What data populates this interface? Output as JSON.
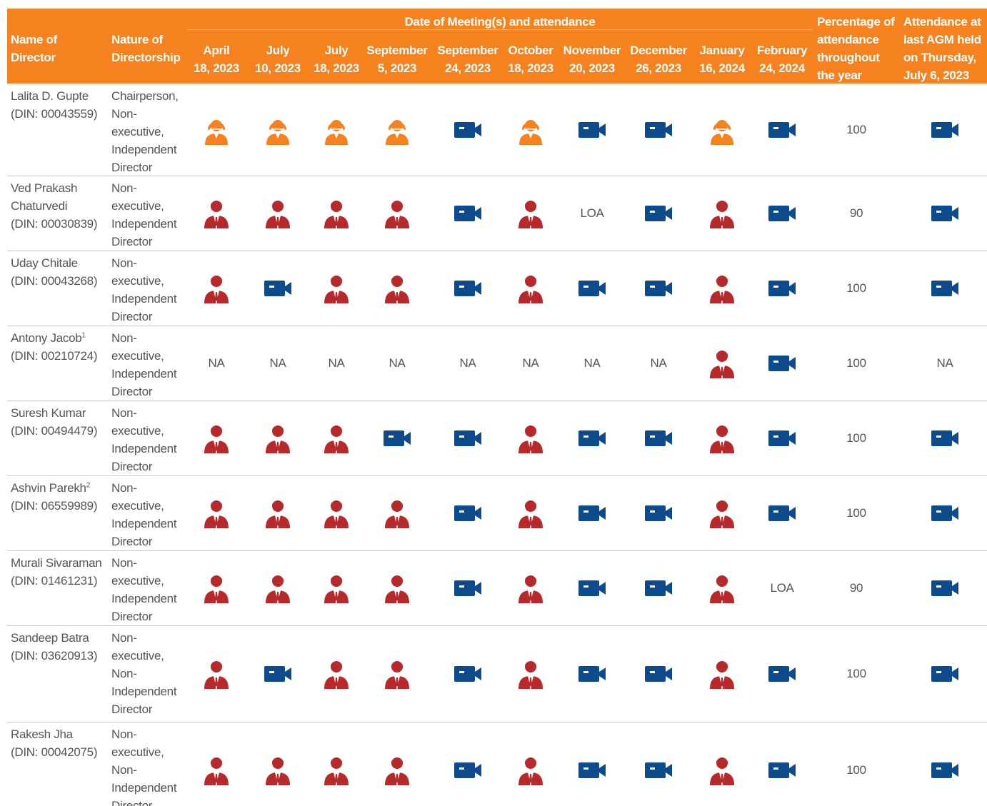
{
  "header": {
    "name": "Name of Director",
    "nature": "Nature of Directorship",
    "group": "Date of Meeting(s) and attendance",
    "meetings": [
      [
        "April",
        "18, 2023"
      ],
      [
        "July",
        "10, 2023"
      ],
      [
        "July",
        "18, 2023"
      ],
      [
        "September",
        "5, 2023"
      ],
      [
        "September",
        "24, 2023"
      ],
      [
        "October",
        "18, 2023"
      ],
      [
        "November",
        "20, 2023"
      ],
      [
        "December",
        "26, 2023"
      ],
      [
        "January",
        "16, 2024"
      ],
      [
        "February",
        "24, 2024"
      ]
    ],
    "percentage": "Percentage of attendance throughout the year",
    "agm": "Attendance at last AGM held on Thursday, July 6, 2023"
  },
  "rows": [
    {
      "name": "Lalita D. Gupte",
      "din": "(DIN: 00043559)",
      "nature": "Chairperson, Non-executive, Independent Director",
      "meetings": [
        "person-f",
        "person-f",
        "person-f",
        "person-f",
        "video",
        "person-f",
        "video",
        "video",
        "person-f",
        "video"
      ],
      "percentage": "100",
      "agm": "video"
    },
    {
      "name": "Ved Prakash Chaturvedi",
      "din": "(DIN: 00030839)",
      "nature": "Non-executive, Independent Director",
      "meetings": [
        "person-m",
        "person-m",
        "person-m",
        "person-m",
        "video",
        "person-m",
        "LOA",
        "video",
        "person-m",
        "video"
      ],
      "percentage": "90",
      "agm": "video"
    },
    {
      "name": "Uday Chitale",
      "din": "(DIN: 00043268)",
      "nature": "Non-executive, Independent Director",
      "meetings": [
        "person-m",
        "video",
        "person-m",
        "person-m",
        "video",
        "person-m",
        "video",
        "video",
        "person-m",
        "video"
      ],
      "percentage": "100",
      "agm": "video"
    },
    {
      "name": "Antony Jacob",
      "sup": "1",
      "din": "(DIN: 00210724)",
      "nature": "Non-executive, Independent Director",
      "meetings": [
        "NA",
        "NA",
        "NA",
        "NA",
        "NA",
        "NA",
        "NA",
        "NA",
        "person-m",
        "video"
      ],
      "percentage": "100",
      "agm": "NA"
    },
    {
      "name": "Suresh Kumar",
      "din": "(DIN: 00494479)",
      "nature": "Non-executive, Independent Director",
      "meetings": [
        "person-m",
        "person-m",
        "person-m",
        "video",
        "video",
        "person-m",
        "video",
        "video",
        "person-m",
        "video"
      ],
      "percentage": "100",
      "agm": "video"
    },
    {
      "name": "Ashvin Parekh",
      "sup": "2",
      "din": "(DIN: 06559989)",
      "nature": "Non-executive, Independent Director",
      "meetings": [
        "person-m",
        "person-m",
        "person-m",
        "person-m",
        "video",
        "person-m",
        "video",
        "video",
        "person-m",
        "video"
      ],
      "percentage": "100",
      "agm": "video"
    },
    {
      "name": "Murali Sivaraman",
      "din": "(DIN: 01461231)",
      "nature": "Non-executive, Independent Director",
      "meetings": [
        "person-m",
        "person-m",
        "person-m",
        "person-m",
        "video",
        "person-m",
        "video",
        "video",
        "person-m",
        "LOA"
      ],
      "percentage": "90",
      "agm": "video"
    },
    {
      "name": "Sandeep Batra",
      "din": "(DIN: 03620913)",
      "nature": "Non-executive, Non-Independent Director",
      "meetings": [
        "person-m",
        "video",
        "person-m",
        "person-m",
        "video",
        "person-m",
        "video",
        "video",
        "person-m",
        "video"
      ],
      "percentage": "100",
      "agm": "video"
    },
    {
      "name": "Rakesh Jha",
      "din": "(DIN: 00042075)",
      "nature": "Non-executive, Non-Independent Director",
      "meetings": [
        "person-m",
        "person-m",
        "person-m",
        "person-m",
        "video",
        "person-m",
        "video",
        "video",
        "person-m",
        "video"
      ],
      "percentage": "100",
      "agm": "video"
    }
  ]
}
